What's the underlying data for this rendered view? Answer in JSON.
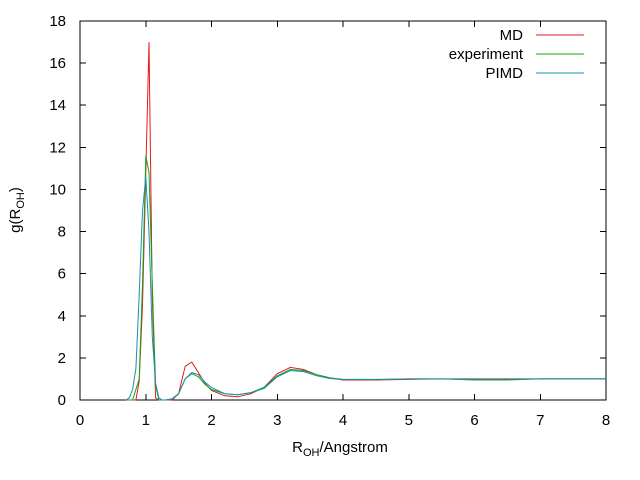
{
  "chart_data": {
    "type": "line",
    "xlabel": {
      "main": "R",
      "sub": "OH",
      "rest": "/Angstrom"
    },
    "ylabel": {
      "main": "g(R",
      "sub": "OH",
      "rest": ")"
    },
    "xlim": [
      0,
      8
    ],
    "ylim": [
      0,
      18
    ],
    "xticks": [
      "0",
      "1",
      "2",
      "3",
      "4",
      "5",
      "6",
      "7",
      "8"
    ],
    "yticks": [
      "0",
      "2",
      "4",
      "6",
      "8",
      "10",
      "12",
      "14",
      "16",
      "18"
    ],
    "grid": false,
    "legend_position": "top-right",
    "series": [
      {
        "name": "MD",
        "color": "#e41a1c",
        "x": [
          0.7,
          0.85,
          0.9,
          0.95,
          1.0,
          1.05,
          1.1,
          1.15,
          1.2,
          1.3,
          1.4,
          1.5,
          1.6,
          1.7,
          1.8,
          1.9,
          2.0,
          2.2,
          2.4,
          2.6,
          2.8,
          3.0,
          3.2,
          3.4,
          3.6,
          3.8,
          4.0,
          4.5,
          5.0,
          5.5,
          6.0,
          6.5,
          7.0,
          7.5,
          8.0
        ],
        "y": [
          0,
          0,
          0.9,
          4.5,
          10.8,
          17.0,
          4.8,
          0.1,
          0,
          0,
          0,
          0.3,
          1.6,
          1.8,
          1.3,
          0.8,
          0.45,
          0.2,
          0.15,
          0.3,
          0.6,
          1.25,
          1.55,
          1.45,
          1.2,
          1.05,
          0.95,
          0.95,
          0.98,
          1.0,
          1.0,
          1.0,
          1.0,
          1.0,
          1.0
        ]
      },
      {
        "name": "experiment",
        "color": "#1aa31a",
        "x": [
          0.7,
          0.8,
          0.9,
          0.95,
          1.0,
          1.05,
          1.1,
          1.15,
          1.2,
          1.3,
          1.4,
          1.5,
          1.6,
          1.7,
          1.8,
          1.9,
          2.0,
          2.2,
          2.4,
          2.6,
          2.8,
          3.0,
          3.2,
          3.4,
          3.6,
          3.8,
          4.0,
          4.5,
          5.0,
          5.5,
          6.0,
          6.5,
          7.0,
          7.5,
          8.0
        ],
        "y": [
          0,
          0,
          1.0,
          5.5,
          11.6,
          10.8,
          5.5,
          0.7,
          0,
          0,
          0.05,
          0.3,
          1.0,
          1.25,
          1.1,
          0.75,
          0.5,
          0.3,
          0.25,
          0.35,
          0.6,
          1.15,
          1.45,
          1.4,
          1.2,
          1.05,
          0.98,
          0.97,
          1.0,
          1.0,
          0.95,
          0.95,
          1.0,
          1.0,
          1.0
        ]
      },
      {
        "name": "PIMD",
        "color": "#1a8fb0",
        "x": [
          0.7,
          0.75,
          0.8,
          0.85,
          0.9,
          0.95,
          1.0,
          1.05,
          1.1,
          1.15,
          1.2,
          1.25,
          1.3,
          1.4,
          1.5,
          1.6,
          1.7,
          1.8,
          1.9,
          2.0,
          2.2,
          2.4,
          2.6,
          2.8,
          3.0,
          3.2,
          3.4,
          3.6,
          3.8,
          4.0,
          4.5,
          5.0,
          5.5,
          6.0,
          6.5,
          7.0,
          7.5,
          8.0
        ],
        "y": [
          0,
          0.1,
          0.5,
          1.5,
          5.0,
          9.0,
          10.6,
          8.0,
          3.0,
          0.8,
          0.1,
          0,
          0,
          0.05,
          0.3,
          1.0,
          1.3,
          1.2,
          0.85,
          0.6,
          0.3,
          0.25,
          0.35,
          0.55,
          1.1,
          1.4,
          1.35,
          1.15,
          1.02,
          0.98,
          0.98,
          1.0,
          1.0,
          0.98,
          0.98,
          1.0,
          1.0,
          1.0
        ]
      }
    ]
  }
}
